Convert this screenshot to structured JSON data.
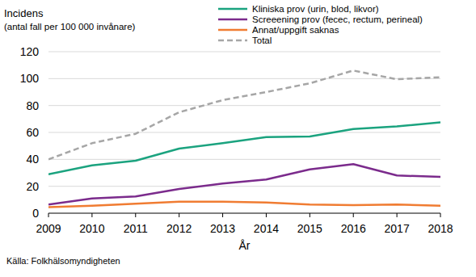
{
  "chart_data": {
    "type": "line",
    "y_label": [
      "Incidens",
      "(antal fall per 100 000 invånare)"
    ],
    "x_label": "År",
    "source": "Källa: Folkhälsomyndigheten",
    "x": [
      2009,
      2010,
      2011,
      2012,
      2013,
      2014,
      2015,
      2016,
      2017,
      2018
    ],
    "xlim": [
      2009,
      2018
    ],
    "xticks": [
      2009,
      2010,
      2011,
      2012,
      2013,
      2014,
      2015,
      2016,
      2017,
      2018
    ],
    "ylim": [
      0,
      120
    ],
    "yticks": [
      0,
      20,
      40,
      60,
      80,
      100,
      120
    ],
    "grid": true,
    "legend": "top",
    "series": [
      {
        "name": "Kliniska prov (urin, blod, likvor)",
        "color": "#1ba37f",
        "line_style": "solid",
        "values": [
          29,
          35.5,
          39,
          48,
          52,
          56.5,
          57,
          62.5,
          64.5,
          67.5
        ]
      },
      {
        "name": "Screeening prov (fecec, rectum, perineal)",
        "color": "#7b2b8c",
        "line_style": "solid",
        "values": [
          6.5,
          11,
          12.5,
          18,
          22,
          25,
          32.5,
          36.5,
          28,
          27
        ]
      },
      {
        "name": "Annat/uppgift saknas",
        "color": "#f07c32",
        "line_style": "solid",
        "values": [
          4.5,
          5.5,
          7,
          8.5,
          8.5,
          8,
          6.5,
          6,
          6.5,
          5.5
        ]
      },
      {
        "name": "Total",
        "color": "#a6a6a6",
        "line_style": "dashed",
        "values": [
          40,
          52,
          59,
          75,
          84,
          90,
          96.5,
          106,
          99.5,
          101
        ]
      }
    ]
  }
}
